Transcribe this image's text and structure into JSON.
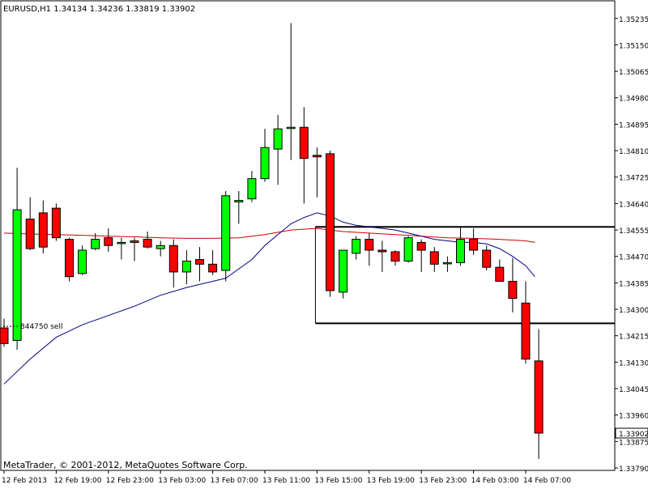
{
  "window": {
    "title": "EURUSD,H1  1.34134 1.34236 1.33819 1.33902",
    "footer": "MetaTrader, © 2001-2012, MetaQuotes Software Corp."
  },
  "colors": {
    "background": "#ffffff",
    "bull": "#00ff00",
    "bear": "#ff0000",
    "wick": "#000000",
    "ma_blue": "#000080",
    "ma_red": "#cc0000",
    "level_line": "#000000",
    "price_marker": "#000000"
  },
  "chart_data": {
    "type": "candlestick",
    "symbol": "EURUSD",
    "timeframe": "H1",
    "ohlc_header": {
      "open": 1.34134,
      "high": 1.34236,
      "low": 1.33819,
      "close": 1.33902
    },
    "last_price": "1.33902",
    "ylim": [
      1.3379,
      1.3525
    ],
    "y_ticks": [
      "1.35235",
      "1.35150",
      "1.35065",
      "1.34980",
      "1.34895",
      "1.34810",
      "1.34725",
      "1.34640",
      "1.34555",
      "1.34470",
      "1.34385",
      "1.34300",
      "1.34215",
      "1.34130",
      "1.34045",
      "1.33960",
      "1.33875",
      "1.33790"
    ],
    "x_ticks": [
      "12 Feb 2013",
      "12 Feb 19:00",
      "12 Feb 23:00",
      "13 Feb 03:00",
      "13 Feb 07:00",
      "13 Feb 11:00",
      "13 Feb 15:00",
      "13 Feb 19:00",
      "13 Feb 23:00",
      "14 Feb 03:00",
      "14 Feb 07:00"
    ],
    "annotations": [
      {
        "type": "text",
        "text": "844750 sell",
        "price": 1.34245
      },
      {
        "type": "marker",
        "text": "844750 sell",
        "price": 1.34245
      }
    ],
    "levels": [
      {
        "price": 1.34565,
        "from_bar": 24,
        "to_bar": 46
      },
      {
        "price": 1.34255,
        "from_bar": 24,
        "to_bar": 46
      }
    ],
    "candles": [
      {
        "o": 1.3424,
        "h": 1.3427,
        "l": 1.3418,
        "c": 1.3419
      },
      {
        "o": 1.342,
        "h": 1.34755,
        "l": 1.3417,
        "c": 1.3462
      },
      {
        "o": 1.3459,
        "h": 1.3466,
        "l": 1.3449,
        "c": 1.34495
      },
      {
        "o": 1.3461,
        "h": 1.3465,
        "l": 1.3448,
        "c": 1.345
      },
      {
        "o": 1.34625,
        "h": 1.3464,
        "l": 1.3452,
        "c": 1.3453
      },
      {
        "o": 1.34525,
        "h": 1.3453,
        "l": 1.3439,
        "c": 1.34405
      },
      {
        "o": 1.34415,
        "h": 1.34505,
        "l": 1.3441,
        "c": 1.3449
      },
      {
        "o": 1.34495,
        "h": 1.34545,
        "l": 1.3449,
        "c": 1.34525
      },
      {
        "o": 1.3453,
        "h": 1.3456,
        "l": 1.34485,
        "c": 1.34505
      },
      {
        "o": 1.34515,
        "h": 1.3453,
        "l": 1.3446,
        "c": 1.34515
      },
      {
        "o": 1.3452,
        "h": 1.3453,
        "l": 1.34455,
        "c": 1.34515
      },
      {
        "o": 1.34525,
        "h": 1.3455,
        "l": 1.34495,
        "c": 1.345
      },
      {
        "o": 1.34495,
        "h": 1.3452,
        "l": 1.3447,
        "c": 1.34505
      },
      {
        "o": 1.34505,
        "h": 1.34525,
        "l": 1.3437,
        "c": 1.3442
      },
      {
        "o": 1.3442,
        "h": 1.3449,
        "l": 1.3438,
        "c": 1.34455
      },
      {
        "o": 1.3446,
        "h": 1.345,
        "l": 1.3439,
        "c": 1.34445
      },
      {
        "o": 1.34445,
        "h": 1.3449,
        "l": 1.3441,
        "c": 1.3442
      },
      {
        "o": 1.34425,
        "h": 1.3468,
        "l": 1.3439,
        "c": 1.34665
      },
      {
        "o": 1.34645,
        "h": 1.3468,
        "l": 1.34575,
        "c": 1.3465
      },
      {
        "o": 1.34655,
        "h": 1.34745,
        "l": 1.34645,
        "c": 1.3472
      },
      {
        "o": 1.3472,
        "h": 1.3488,
        "l": 1.3471,
        "c": 1.3482
      },
      {
        "o": 1.34815,
        "h": 1.34925,
        "l": 1.347,
        "c": 1.3488
      },
      {
        "o": 1.34885,
        "h": 1.3522,
        "l": 1.3478,
        "c": 1.34885
      },
      {
        "o": 1.34885,
        "h": 1.3495,
        "l": 1.3464,
        "c": 1.34785
      },
      {
        "o": 1.34795,
        "h": 1.3482,
        "l": 1.3466,
        "c": 1.3479
      },
      {
        "o": 1.348,
        "h": 1.3481,
        "l": 1.3434,
        "c": 1.3436
      },
      {
        "o": 1.34355,
        "h": 1.3449,
        "l": 1.34335,
        "c": 1.3449
      },
      {
        "o": 1.3448,
        "h": 1.34535,
        "l": 1.3446,
        "c": 1.34525
      },
      {
        "o": 1.34525,
        "h": 1.34545,
        "l": 1.3444,
        "c": 1.3449
      },
      {
        "o": 1.3449,
        "h": 1.3452,
        "l": 1.3442,
        "c": 1.34485
      },
      {
        "o": 1.34485,
        "h": 1.3449,
        "l": 1.3444,
        "c": 1.34455
      },
      {
        "o": 1.34455,
        "h": 1.34535,
        "l": 1.3445,
        "c": 1.3453
      },
      {
        "o": 1.34515,
        "h": 1.34525,
        "l": 1.3442,
        "c": 1.3449
      },
      {
        "o": 1.34485,
        "h": 1.345,
        "l": 1.3442,
        "c": 1.34445
      },
      {
        "o": 1.3445,
        "h": 1.3447,
        "l": 1.3442,
        "c": 1.3445
      },
      {
        "o": 1.3445,
        "h": 1.34565,
        "l": 1.3444,
        "c": 1.34525
      },
      {
        "o": 1.34525,
        "h": 1.3456,
        "l": 1.34475,
        "c": 1.3449
      },
      {
        "o": 1.3449,
        "h": 1.34505,
        "l": 1.34425,
        "c": 1.34435
      },
      {
        "o": 1.34435,
        "h": 1.3446,
        "l": 1.3439,
        "c": 1.3439
      },
      {
        "o": 1.3439,
        "h": 1.34465,
        "l": 1.3429,
        "c": 1.34335
      },
      {
        "o": 1.3432,
        "h": 1.3439,
        "l": 1.34125,
        "c": 1.3414
      },
      {
        "o": 1.34134,
        "h": 1.34236,
        "l": 1.33819,
        "c": 1.33902
      }
    ],
    "ma_blue": [
      [
        0,
        1.3406
      ],
      [
        2,
        1.3414
      ],
      [
        4,
        1.3421
      ],
      [
        6,
        1.3425
      ],
      [
        8,
        1.3428
      ],
      [
        10,
        1.3431
      ],
      [
        12,
        1.34345
      ],
      [
        14,
        1.3437
      ],
      [
        16,
        1.3439
      ],
      [
        17,
        1.344
      ],
      [
        18,
        1.3443
      ],
      [
        19,
        1.3446
      ],
      [
        20,
        1.34505
      ],
      [
        21,
        1.3454
      ],
      [
        22,
        1.34575
      ],
      [
        23,
        1.34595
      ],
      [
        24,
        1.3461
      ],
      [
        25,
        1.346
      ],
      [
        26,
        1.3458
      ],
      [
        27,
        1.3457
      ],
      [
        28,
        1.34565
      ],
      [
        29,
        1.3456
      ],
      [
        30,
        1.34555
      ],
      [
        31,
        1.34545
      ],
      [
        32,
        1.34535
      ],
      [
        33,
        1.34525
      ],
      [
        34,
        1.3452
      ],
      [
        35,
        1.34515
      ],
      [
        36,
        1.34515
      ],
      [
        37,
        1.3451
      ],
      [
        38,
        1.34495
      ],
      [
        39,
        1.3447
      ],
      [
        40,
        1.3444
      ],
      [
        40.7,
        1.34405
      ]
    ],
    "ma_red": [
      [
        0,
        1.34545
      ],
      [
        2,
        1.34542
      ],
      [
        4,
        1.3454
      ],
      [
        6,
        1.34538
      ],
      [
        8,
        1.34535
      ],
      [
        10,
        1.34533
      ],
      [
        12,
        1.3453
      ],
      [
        14,
        1.34528
      ],
      [
        16,
        1.34528
      ],
      [
        18,
        1.3453
      ],
      [
        20,
        1.3454
      ],
      [
        22,
        1.34555
      ],
      [
        24,
        1.3456
      ],
      [
        25,
        1.34555
      ],
      [
        26,
        1.3455
      ],
      [
        28,
        1.34545
      ],
      [
        30,
        1.3454
      ],
      [
        32,
        1.34535
      ],
      [
        34,
        1.3453
      ],
      [
        36,
        1.34528
      ],
      [
        38,
        1.34525
      ],
      [
        40,
        1.3452
      ],
      [
        40.7,
        1.34515
      ]
    ]
  }
}
